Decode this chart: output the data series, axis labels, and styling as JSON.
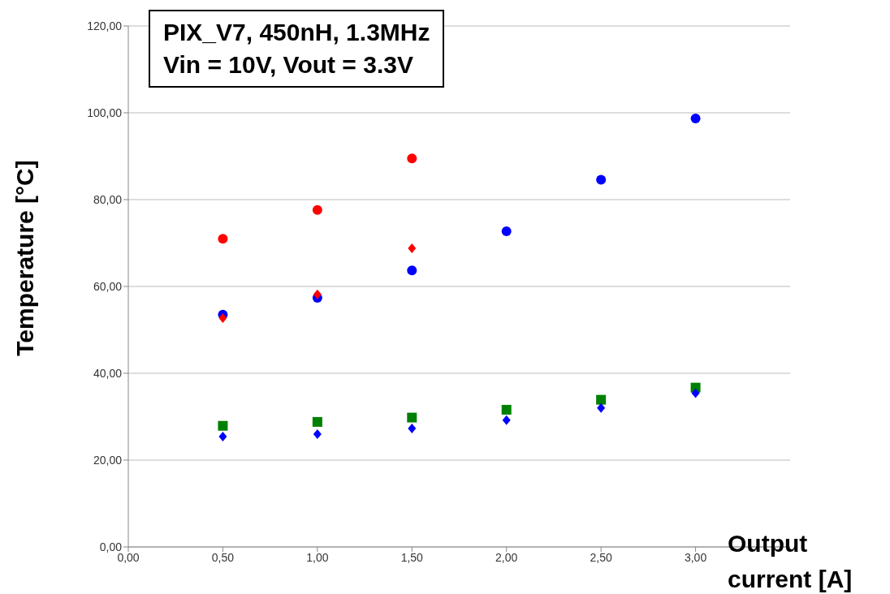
{
  "chart_data": {
    "type": "scatter",
    "title": "PIX_V7, 450nH, 1.3MHz",
    "subtitle": "Vin = 10V, Vout = 3.3V",
    "xlabel": "Output current [A]",
    "ylabel": "Temperature [°C]",
    "xlim": [
      0,
      3.5
    ],
    "xticks": [
      {
        "value": 0,
        "label": "0,00"
      },
      {
        "value": 0.5,
        "label": "0,50"
      },
      {
        "value": 1,
        "label": "1,00"
      },
      {
        "value": 1.5,
        "label": "1,50"
      },
      {
        "value": 2,
        "label": "2,00"
      },
      {
        "value": 2.5,
        "label": "2,50"
      },
      {
        "value": 3,
        "label": "3,00"
      }
    ],
    "ylim": [
      0,
      120
    ],
    "yticks": [
      {
        "value": 0,
        "label": "0,00"
      },
      {
        "value": 20,
        "label": "20,00"
      },
      {
        "value": 40,
        "label": "40,00"
      },
      {
        "value": 60,
        "label": "60,00"
      },
      {
        "value": 80,
        "label": "80,00"
      },
      {
        "value": 100,
        "label": "100,00"
      },
      {
        "value": 120,
        "label": "120,00"
      }
    ],
    "grid": "y",
    "legend": false,
    "series": [
      {
        "color": "#ff0000",
        "marker": "circle",
        "x": [
          0.5,
          1,
          1.5
        ],
        "values": [
          71.0,
          77.6,
          89.5
        ]
      },
      {
        "color": "#0000ff",
        "marker": "circle",
        "x": [
          0.5,
          1,
          1.5,
          2,
          2.5,
          3
        ],
        "values": [
          53.5,
          57.4,
          63.7,
          72.7,
          84.6,
          98.7
        ]
      },
      {
        "color": "#ff0000",
        "marker": "diamond",
        "x": [
          0.5,
          1,
          1.5
        ],
        "values": [
          52.7,
          58.2,
          68.8
        ]
      },
      {
        "color": "#008000",
        "marker": "square",
        "x": [
          0.5,
          1,
          1.5,
          2,
          2.5,
          3
        ],
        "values": [
          27.9,
          28.8,
          29.8,
          31.6,
          33.9,
          36.7
        ]
      },
      {
        "color": "#0000ff",
        "marker": "diamond",
        "x": [
          0.5,
          1,
          1.5,
          2,
          2.5,
          3
        ],
        "values": [
          25.4,
          26.0,
          27.3,
          29.2,
          32.0,
          35.4
        ]
      }
    ]
  }
}
